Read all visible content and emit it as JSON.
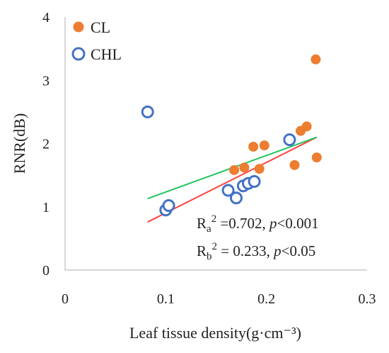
{
  "chart_data": {
    "type": "scatter",
    "xlabel": "Leaf tissue density(g·cm⁻³)",
    "ylabel": "RNR(dB)",
    "xlim": [
      0,
      0.3
    ],
    "ylim": [
      0,
      4
    ],
    "xticks": [
      0,
      0.1,
      0.2,
      0.3
    ],
    "yticks": [
      0,
      1,
      2,
      3,
      4
    ],
    "xtick_labels": [
      "0",
      "0.1",
      "0.2",
      "0.3"
    ],
    "ytick_labels": [
      "0",
      "1",
      "2",
      "3",
      "4"
    ],
    "grid": false,
    "legend_position": "top-left",
    "series": [
      {
        "name": "CL",
        "color": "#ED7D31",
        "marker": "filled-circle",
        "points": [
          [
            0.168,
            1.58
          ],
          [
            0.178,
            1.62
          ],
          [
            0.187,
            1.95
          ],
          [
            0.193,
            1.6
          ],
          [
            0.198,
            1.97
          ],
          [
            0.228,
            1.66
          ],
          [
            0.234,
            2.2
          ],
          [
            0.24,
            2.27
          ],
          [
            0.25,
            1.78
          ],
          [
            0.249,
            3.33
          ]
        ]
      },
      {
        "name": "CHL",
        "color": "#4472C4",
        "marker": "open-circle",
        "points": [
          [
            0.082,
            2.5
          ],
          [
            0.1,
            0.95
          ],
          [
            0.103,
            1.02
          ],
          [
            0.162,
            1.26
          ],
          [
            0.17,
            1.14
          ],
          [
            0.177,
            1.33
          ],
          [
            0.182,
            1.37
          ],
          [
            0.188,
            1.4
          ],
          [
            0.223,
            2.06
          ]
        ]
      }
    ],
    "trendlines": [
      {
        "color": "#FF4444",
        "x": [
          0.082,
          0.25
        ],
        "y": [
          0.76,
          2.1
        ]
      },
      {
        "color": "#22C55E",
        "x": [
          0.082,
          0.25
        ],
        "y": [
          1.13,
          2.1
        ]
      }
    ],
    "annotations": [
      {
        "base": "R",
        "sub": "a",
        "sup": "2",
        "text_prefix": " =0.702, ",
        "p": "p",
        "text_suffix": "<0.001"
      },
      {
        "base": "R",
        "sub": "b",
        "sup": "2",
        "text_prefix": " = 0.233, ",
        "p": "p",
        "text_suffix": "<0.05"
      }
    ]
  }
}
